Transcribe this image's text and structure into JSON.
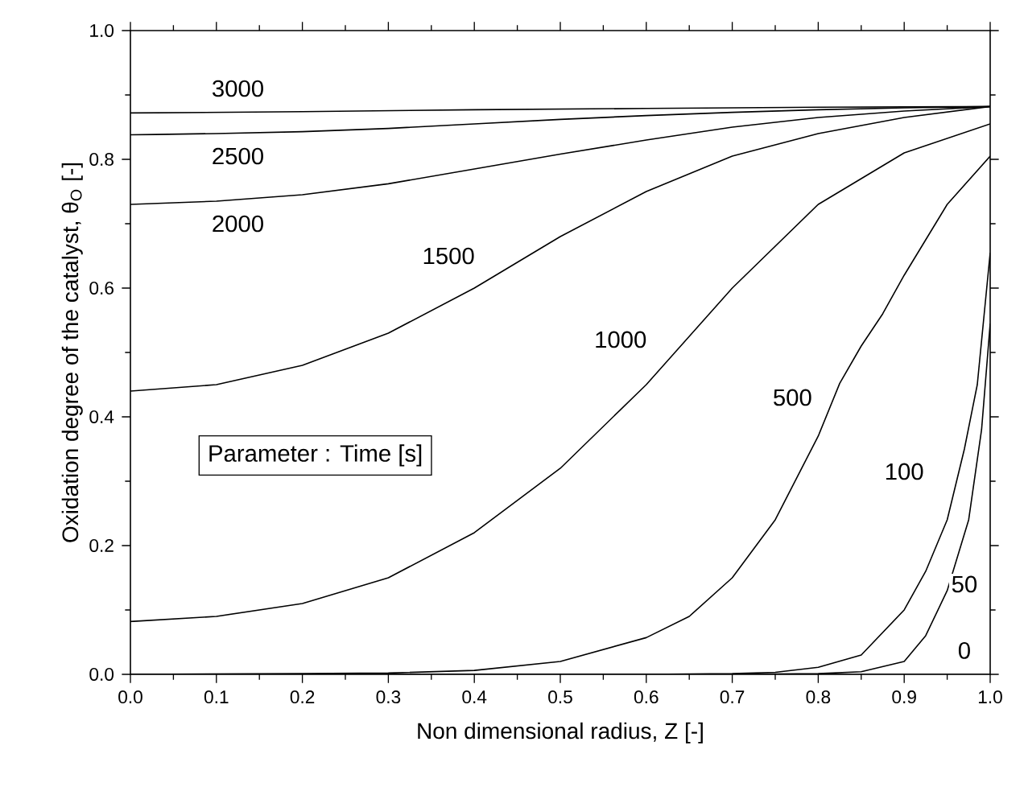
{
  "chart_data": {
    "type": "line",
    "xlabel": "Non dimensional radius, Z [-]",
    "ylabel": "Oxidation degree of the catalyst, θ$_{O}$ [-]",
    "xlim": [
      0,
      1
    ],
    "ylim": [
      0,
      1
    ],
    "xticks": [
      {
        "value": 0,
        "label": "0.0"
      },
      {
        "value": 0.1,
        "label": "0.1"
      },
      {
        "value": 0.2,
        "label": "0.2"
      },
      {
        "value": 0.3,
        "label": "0.3"
      },
      {
        "value": 0.4,
        "label": "0.4"
      },
      {
        "value": 0.5,
        "label": "0.5"
      },
      {
        "value": 0.6,
        "label": "0.6"
      },
      {
        "value": 0.7,
        "label": "0.7"
      },
      {
        "value": 0.8,
        "label": "0.8"
      },
      {
        "value": 0.9,
        "label": "0.9"
      },
      {
        "value": 1,
        "label": "1.0"
      }
    ],
    "yticks": [
      {
        "value": 0,
        "label": "0.0"
      },
      {
        "value": 0.2,
        "label": "0.2"
      },
      {
        "value": 0.4,
        "label": "0.4"
      },
      {
        "value": 0.6,
        "label": "0.6"
      },
      {
        "value": 0.8,
        "label": "0.8"
      },
      {
        "value": 1,
        "label": "1.0"
      }
    ],
    "marker": "none",
    "line_style": "solid",
    "series": [
      {
        "color": "#000000",
        "x": [
          0,
          0.2,
          0.4,
          0.6,
          0.8,
          1.0
        ],
        "values": [
          0.872,
          0.874,
          0.877,
          0.879,
          0.881,
          0.882
        ]
      },
      {
        "color": "#000000",
        "x": [
          0,
          0.1,
          0.2,
          0.3,
          0.4,
          0.5,
          0.6,
          0.7,
          0.8,
          0.9,
          1.0
        ],
        "values": [
          0.838,
          0.84,
          0.843,
          0.848,
          0.855,
          0.862,
          0.868,
          0.873,
          0.877,
          0.88,
          0.882
        ]
      },
      {
        "color": "#000000",
        "x": [
          0,
          0.1,
          0.2,
          0.3,
          0.4,
          0.5,
          0.6,
          0.7,
          0.8,
          0.9,
          1.0
        ],
        "values": [
          0.73,
          0.735,
          0.745,
          0.762,
          0.785,
          0.808,
          0.83,
          0.85,
          0.865,
          0.875,
          0.882
        ]
      },
      {
        "color": "#000000",
        "x": [
          0,
          0.1,
          0.2,
          0.3,
          0.4,
          0.5,
          0.6,
          0.7,
          0.8,
          0.9,
          1.0
        ],
        "values": [
          0.44,
          0.45,
          0.48,
          0.53,
          0.6,
          0.68,
          0.75,
          0.805,
          0.84,
          0.865,
          0.882
        ]
      },
      {
        "color": "#000000",
        "x": [
          0,
          0.1,
          0.2,
          0.3,
          0.4,
          0.5,
          0.6,
          0.7,
          0.8,
          0.9,
          1.0
        ],
        "values": [
          0.082,
          0.09,
          0.11,
          0.15,
          0.22,
          0.32,
          0.45,
          0.6,
          0.73,
          0.81,
          0.855
        ]
      },
      {
        "color": "#000000",
        "x": [
          0,
          0.2,
          0.3,
          0.4,
          0.5,
          0.6,
          0.65,
          0.7,
          0.75,
          0.8,
          0.825,
          0.85,
          0.875,
          0.9,
          0.95,
          1.0
        ],
        "values": [
          0,
          0.001,
          0.002,
          0.006,
          0.02,
          0.057,
          0.09,
          0.15,
          0.24,
          0.37,
          0.452,
          0.51,
          0.56,
          0.62,
          0.73,
          0.805
        ]
      },
      {
        "color": "#000000",
        "x": [
          0,
          0.6,
          0.7,
          0.75,
          0.8,
          0.85,
          0.9,
          0.925,
          0.95,
          0.97,
          0.985,
          1.0
        ],
        "values": [
          0,
          0,
          0.001,
          0.003,
          0.011,
          0.03,
          0.1,
          0.16,
          0.24,
          0.35,
          0.45,
          0.655
        ]
      },
      {
        "color": "#000000",
        "x": [
          0,
          0.7,
          0.8,
          0.85,
          0.9,
          0.925,
          0.95,
          0.975,
          0.99,
          1.0
        ],
        "values": [
          0,
          0,
          0.001,
          0.004,
          0.02,
          0.06,
          0.13,
          0.24,
          0.38,
          0.545
        ]
      },
      {
        "color": "#000000",
        "x": [
          0,
          1.0
        ],
        "values": [
          0,
          0
        ]
      }
    ],
    "annotations": [
      "Parameter : Time [s]",
      {
        "text": "3000",
        "x": 0.125,
        "y": 0.91
      },
      {
        "text": "2500",
        "x": 0.125,
        "y": 0.805
      },
      {
        "text": "2000",
        "x": 0.125,
        "y": 0.7
      },
      {
        "text": "1500",
        "x": 0.37,
        "y": 0.65
      },
      {
        "text": "1000",
        "x": 0.57,
        "y": 0.52
      },
      {
        "text": "500",
        "x": 0.77,
        "y": 0.43
      },
      {
        "text": "100",
        "x": 0.9,
        "y": 0.315
      },
      {
        "text": "50",
        "x": 0.97,
        "y": 0.14
      },
      {
        "text": "0",
        "x": 0.97,
        "y": 0.037
      }
    ]
  }
}
